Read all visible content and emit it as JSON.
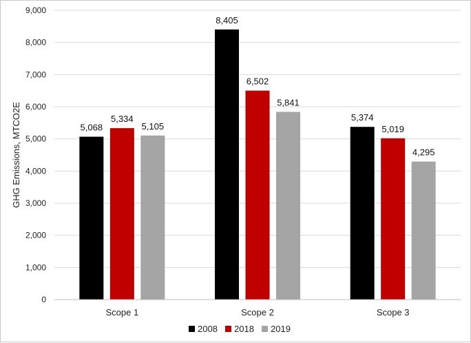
{
  "chart_data": {
    "type": "bar",
    "ylabel": "GHG Emissions, MTCO2E",
    "xlabel": "",
    "ylim": [
      0,
      9000
    ],
    "yticks": [
      0,
      1000,
      2000,
      3000,
      4000,
      5000,
      6000,
      7000,
      8000,
      9000
    ],
    "ytick_labels": [
      "0",
      "1,000",
      "2,000",
      "3,000",
      "4,000",
      "5,000",
      "6,000",
      "7,000",
      "8,000",
      "9,000"
    ],
    "grid": true,
    "legend_position": "bottom",
    "categories": [
      "Scope 1",
      "Scope 2",
      "Scope 3"
    ],
    "series": [
      {
        "name": "2008",
        "color": "#000000",
        "values": [
          5068,
          8405,
          5374
        ],
        "labels": [
          "5,068",
          "8,405",
          "5,374"
        ]
      },
      {
        "name": "2018",
        "color": "#c00000",
        "values": [
          5334,
          6502,
          5019
        ],
        "labels": [
          "5,334",
          "6,502",
          "5,019"
        ]
      },
      {
        "name": "2019",
        "color": "#a5a5a5",
        "values": [
          5105,
          5841,
          4295
        ],
        "labels": [
          "5,105",
          "5,841",
          "4,295"
        ]
      }
    ]
  }
}
